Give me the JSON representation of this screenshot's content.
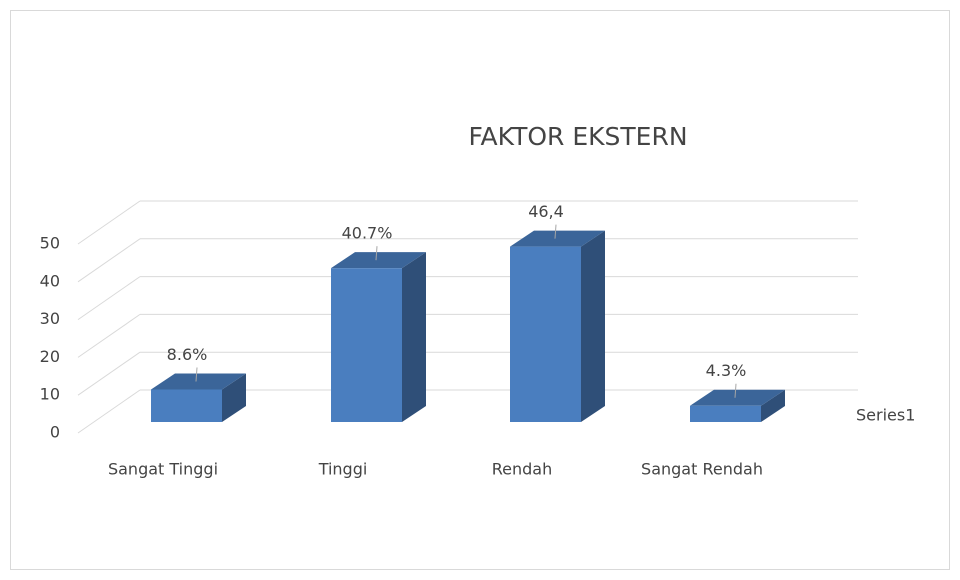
{
  "chart_data": {
    "type": "bar3d",
    "title": "FAKTOR EKSTERN",
    "categories": [
      "Sangat Tinggi",
      "Tinggi",
      "Rendah",
      "Sangat Rendah"
    ],
    "series": [
      {
        "name": "Series1",
        "color": "#4a7ebf",
        "values": [
          8.6,
          40.7,
          46.4,
          4.3
        ],
        "value_labels": [
          "8.6%",
          "40.7%",
          "46,4",
          "4.3%"
        ]
      }
    ],
    "ylim": [
      0,
      50
    ],
    "yticks": [
      0,
      10,
      20,
      30,
      40,
      50
    ],
    "grid": true,
    "legend": "right"
  }
}
